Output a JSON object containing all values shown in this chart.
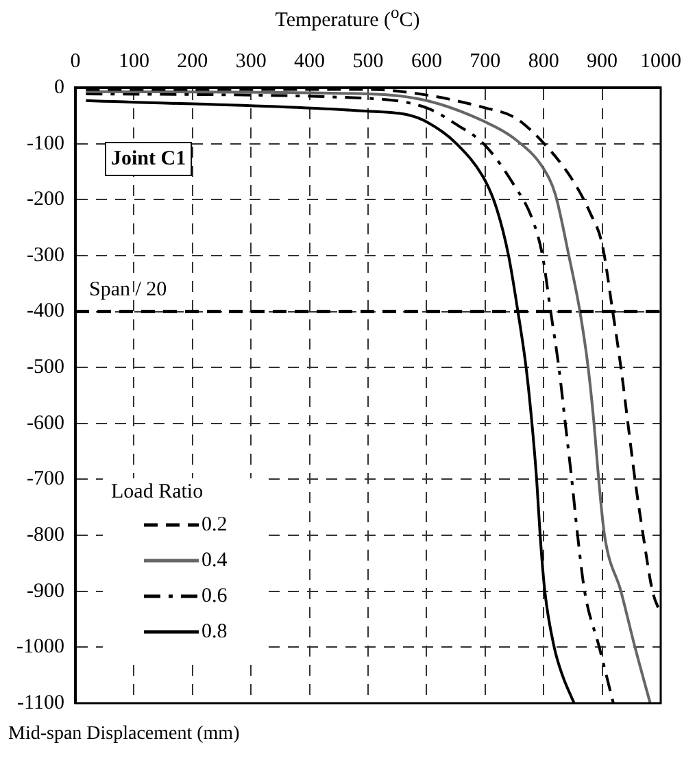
{
  "chart_data": {
    "type": "line",
    "xlabel": "Temperature ($^{o}$C)",
    "ylabel": "Mid-span Displacement (mm)",
    "legend_title": "Load Ratio",
    "legend": "bottom left",
    "grid": true,
    "marker": "none",
    "xlim": [
      0,
      1000
    ],
    "xticks": [
      0,
      100,
      200,
      300,
      400,
      500,
      600,
      700,
      800,
      900,
      1000
    ],
    "ylim": [
      -1100,
      0
    ],
    "yticks": [
      -1100,
      -1000,
      -900,
      -800,
      -700,
      -600,
      -500,
      -400,
      -300,
      -200,
      -100,
      0
    ],
    "annotations": [
      "Joint C1"
    ],
    "ref_lines": [
      {
        "axis": "y",
        "value": -400,
        "label": "Span / 20",
        "color": "#000000",
        "line_style": "dashed"
      }
    ],
    "series": [
      {
        "name": "0.2",
        "color": "#000000",
        "line_style": "dashed",
        "x": [
          18,
          500,
          600,
          700,
          750,
          800,
          850,
          880,
          900,
          918,
          932,
          944,
          956,
          970,
          986,
          1000
        ],
        "values": [
          -3,
          -3,
          -13,
          -36,
          -53,
          -99,
          -166,
          -225,
          -280,
          -400,
          -500,
          -600,
          -700,
          -800,
          -900,
          -940
        ]
      },
      {
        "name": "0.4",
        "color": "#666666",
        "line_style": "solid",
        "x": [
          18,
          500,
          600,
          700,
          750,
          800,
          820,
          843,
          862,
          876,
          886,
          894,
          904,
          932,
          956,
          982
        ],
        "values": [
          -7,
          -11,
          -23,
          -61,
          -91,
          -145,
          -191,
          -300,
          -400,
          -500,
          -600,
          -700,
          -800,
          -900,
          -1000,
          -1100
        ]
      },
      {
        "name": "0.6",
        "color": "#000000",
        "line_style": "dashdot",
        "x": [
          18,
          500,
          600,
          650,
          700,
          750,
          780,
          798,
          812,
          826,
          837,
          848,
          858,
          870,
          895,
          919
        ],
        "values": [
          -11,
          -19,
          -36,
          -65,
          -103,
          -175,
          -233,
          -300,
          -400,
          -500,
          -600,
          -700,
          -800,
          -900,
          -1000,
          -1100
        ]
      },
      {
        "name": "0.8",
        "color": "#000000",
        "line_style": "solid",
        "x": [
          18,
          500,
          570,
          600,
          650,
          700,
          720,
          740,
          756,
          770,
          780,
          788,
          794,
          802,
          818,
          832,
          852
        ],
        "values": [
          -23,
          -42,
          -49,
          -61,
          -99,
          -166,
          -217,
          -300,
          -400,
          -500,
          -600,
          -700,
          -800,
          -900,
          -1000,
          -1050,
          -1100
        ]
      }
    ]
  }
}
